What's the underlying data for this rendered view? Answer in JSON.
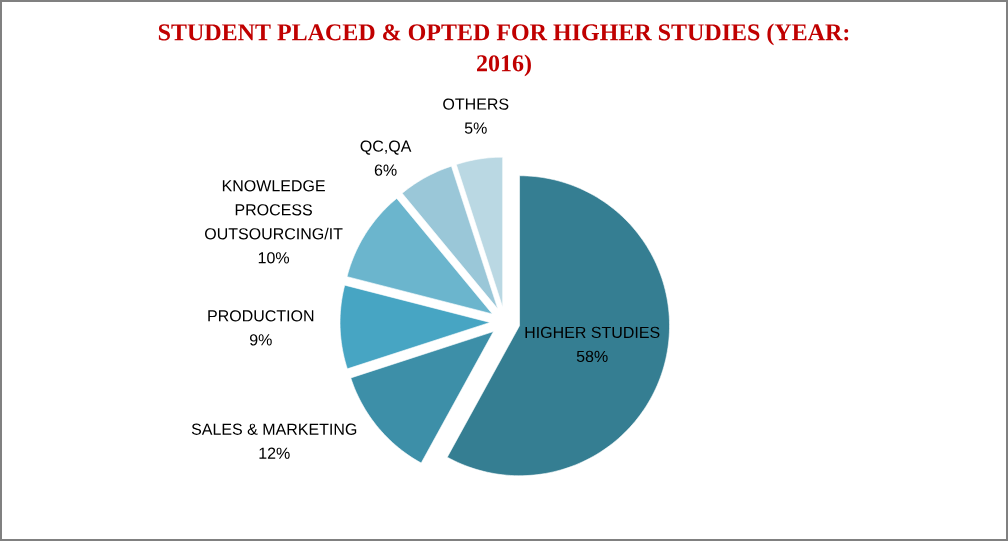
{
  "chart_data": {
    "type": "pie",
    "title": "STUDENT PLACED & OPTED FOR HIGHER STUDIES (YEAR: 2016)",
    "categories": [
      "HIGHER STUDIES",
      "SALES & MARKETING",
      "PRODUCTION",
      "KNOWLEDGE PROCESS OUTSOURCING/IT",
      "QC,QA",
      "OTHERS"
    ],
    "values": [
      58,
      12,
      9,
      10,
      6,
      5
    ],
    "value_labels": [
      "58%",
      "12%",
      "9%",
      "10%",
      "6%",
      "5%"
    ],
    "colors": [
      "#357e92",
      "#3d8fa8",
      "#47a5c3",
      "#6bb5cd",
      "#9ac7d8",
      "#bad8e3"
    ]
  }
}
